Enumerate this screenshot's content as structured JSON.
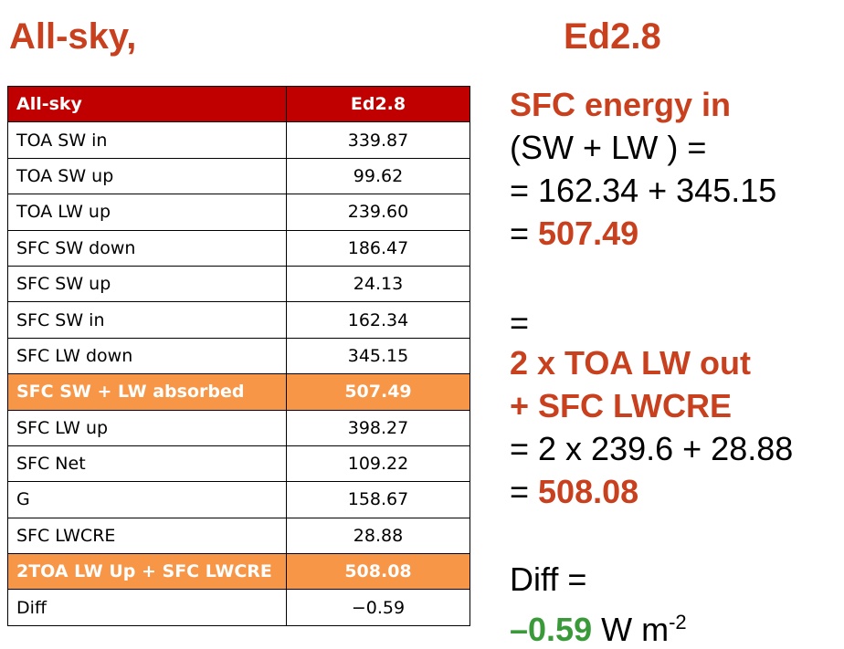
{
  "header": {
    "left": "All-sky,",
    "right": "Ed2.8"
  },
  "table": {
    "columns": [
      "All-sky",
      "Ed2.8"
    ],
    "rows": [
      [
        "TOA SW in",
        "339.87"
      ],
      [
        "TOA SW up",
        "99.62"
      ],
      [
        "TOA LW up",
        "239.60"
      ],
      [
        "SFC SW down",
        "186.47"
      ],
      [
        "SFC SW up",
        "24.13"
      ],
      [
        "SFC SW in",
        "162.34"
      ],
      [
        "SFC LW down",
        "345.15"
      ],
      [
        "SFC SW + LW absorbed",
        "507.49"
      ],
      [
        "SFC LW up",
        "398.27"
      ],
      [
        "SFC Net",
        "109.22"
      ],
      [
        "G",
        "158.67"
      ],
      [
        "SFC LWCRE",
        "28.88"
      ],
      [
        "2TOA LW Up + SFC LWCRE",
        "508.08"
      ],
      [
        "Diff",
        "−0.59"
      ]
    ]
  },
  "summary": {
    "lines": [
      [
        "SFC energy in"
      ],
      [
        "(SW + LW ) ="
      ],
      [
        "= 162.34 + 345.15"
      ],
      [
        "= ",
        "507.49"
      ],
      [
        "="
      ],
      [
        "2 x TOA LW out"
      ],
      [
        "+ SFC LWCRE"
      ],
      [
        "= 2 x 239.6 + 28.88"
      ],
      [
        "= ",
        "508.08"
      ],
      [
        "Diff ="
      ],
      [
        "–0.59",
        " W m",
        "-2"
      ]
    ]
  }
}
